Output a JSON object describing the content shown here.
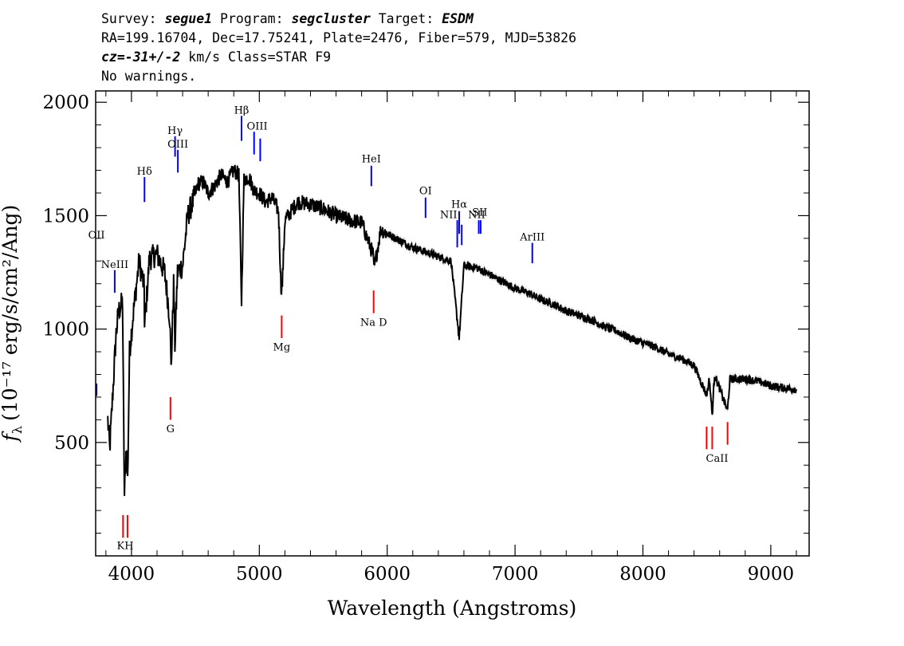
{
  "header": {
    "line1": {
      "p1": "Survey: ",
      "survey": "segue1",
      "p2": " Program: ",
      "program": "segcluster",
      "p3": " Target: ",
      "target": "ESDM"
    },
    "line2": "RA=199.16704, Dec=17.75241, Plate=2476, Fiber=579, MJD=53826",
    "line3": {
      "cz": "cz=-31+/-2",
      "rest": " km/s Class=STAR F9"
    },
    "line4": "No warnings."
  },
  "chart_data": {
    "type": "line",
    "xlabel": "Wavelength (Angstroms)",
    "ylabel_text": "f",
    "ylabel_sub": "λ",
    "ylabel_rest": "(10⁻¹⁷ erg/s/cm²/Ang)",
    "xlim": [
      3720,
      9300
    ],
    "ylim": [
      0,
      2050
    ],
    "xticks": [
      4000,
      5000,
      6000,
      7000,
      8000,
      9000
    ],
    "yticks": [
      500,
      1000,
      1500,
      2000
    ],
    "spectrum_color": "#000000",
    "error_color": "#b0b0b0",
    "spectrum_anchors": [
      [
        3815,
        600
      ],
      [
        3830,
        470
      ],
      [
        3860,
        780
      ],
      [
        3880,
        980
      ],
      [
        3900,
        1080
      ],
      [
        3930,
        1120
      ],
      [
        3945,
        260
      ],
      [
        3960,
        500
      ],
      [
        3970,
        330
      ],
      [
        3985,
        900
      ],
      [
        4020,
        1100
      ],
      [
        4060,
        1300
      ],
      [
        4100,
        1180
      ],
      [
        4102,
        1000
      ],
      [
        4140,
        1310
      ],
      [
        4200,
        1330
      ],
      [
        4260,
        1250
      ],
      [
        4300,
        1050
      ],
      [
        4310,
        820
      ],
      [
        4330,
        1200
      ],
      [
        4340,
        930
      ],
      [
        4360,
        1250
      ],
      [
        4400,
        1280
      ],
      [
        4440,
        1500
      ],
      [
        4480,
        1560
      ],
      [
        4520,
        1640
      ],
      [
        4560,
        1650
      ],
      [
        4600,
        1600
      ],
      [
        4650,
        1630
      ],
      [
        4700,
        1680
      ],
      [
        4750,
        1650
      ],
      [
        4800,
        1700
      ],
      [
        4840,
        1680
      ],
      [
        4861,
        1120
      ],
      [
        4880,
        1660
      ],
      [
        4920,
        1670
      ],
      [
        4960,
        1610
      ],
      [
        5000,
        1600
      ],
      [
        5050,
        1560
      ],
      [
        5100,
        1580
      ],
      [
        5150,
        1520
      ],
      [
        5170,
        1180
      ],
      [
        5180,
        1200
      ],
      [
        5200,
        1480
      ],
      [
        5300,
        1560
      ],
      [
        5400,
        1550
      ],
      [
        5500,
        1530
      ],
      [
        5600,
        1500
      ],
      [
        5700,
        1480
      ],
      [
        5800,
        1470
      ],
      [
        5889,
        1330
      ],
      [
        5896,
        1260
      ],
      [
        5950,
        1440
      ],
      [
        6000,
        1420
      ],
      [
        6100,
        1390
      ],
      [
        6200,
        1360
      ],
      [
        6300,
        1340
      ],
      [
        6400,
        1320
      ],
      [
        6500,
        1300
      ],
      [
        6563,
        960
      ],
      [
        6600,
        1280
      ],
      [
        6700,
        1270
      ],
      [
        6800,
        1240
      ],
      [
        6900,
        1210
      ],
      [
        7000,
        1180
      ],
      [
        7100,
        1160
      ],
      [
        7200,
        1130
      ],
      [
        7300,
        1110
      ],
      [
        7400,
        1080
      ],
      [
        7500,
        1060
      ],
      [
        7600,
        1040
      ],
      [
        7700,
        1010
      ],
      [
        7800,
        990
      ],
      [
        7900,
        960
      ],
      [
        8000,
        940
      ],
      [
        8100,
        920
      ],
      [
        8200,
        890
      ],
      [
        8300,
        870
      ],
      [
        8400,
        840
      ],
      [
        8498,
        710
      ],
      [
        8520,
        780
      ],
      [
        8542,
        620
      ],
      [
        8560,
        800
      ],
      [
        8662,
        640
      ],
      [
        8680,
        780
      ],
      [
        8800,
        780
      ],
      [
        8900,
        770
      ],
      [
        9000,
        750
      ],
      [
        9100,
        740
      ],
      [
        9200,
        735
      ]
    ],
    "emission_lines": [
      {
        "name": "OII",
        "wave": 3727,
        "y1": 705,
        "y2": 760
      },
      {
        "name": "NeIII",
        "wave": 3869,
        "y1": 1160,
        "y2": 1260
      },
      {
        "name": "Hδ",
        "wave": 4102,
        "y1": 1560,
        "y2": 1670
      },
      {
        "name": "Hγ",
        "wave": 4341,
        "y1": 1760,
        "y2": 1850
      },
      {
        "name": "OIII",
        "wave": 4363,
        "y1": 1690,
        "y2": 1790
      },
      {
        "name": "Hβ",
        "wave": 4861,
        "y1": 1830,
        "y2": 1940
      },
      {
        "name": "OIII",
        "wave": 4959,
        "y1": 1770,
        "y2": 1870
      },
      {
        "name": "OIII",
        "wave": 5007,
        "y1": 1740,
        "y2": 1840
      },
      {
        "name": "HeI",
        "wave": 5876,
        "y1": 1630,
        "y2": 1720
      },
      {
        "name": "OI",
        "wave": 6300,
        "y1": 1490,
        "y2": 1580
      },
      {
        "name": "NII",
        "wave": 6548,
        "y1": 1360,
        "y2": 1480
      },
      {
        "name": "Hα",
        "wave": 6563,
        "y1": 1420,
        "y2": 1520
      },
      {
        "name": "NII",
        "wave": 6583,
        "y1": 1370,
        "y2": 1460
      },
      {
        "name": "SII",
        "wave": 6716,
        "y1": 1420,
        "y2": 1480
      },
      {
        "name": "SII",
        "wave": 6731,
        "y1": 1420,
        "y2": 1480
      },
      {
        "name": "ArIII",
        "wave": 7135,
        "y1": 1290,
        "y2": 1380
      }
    ],
    "emission_labels": [
      {
        "text": "OII",
        "wave": 3727,
        "y": 1400
      },
      {
        "text": "NeIII",
        "wave": 3869,
        "y": 1270
      },
      {
        "text": "Hδ",
        "wave": 4102,
        "y": 1680
      },
      {
        "text": "Hγ",
        "wave": 4341,
        "y": 1860
      },
      {
        "text": "OIII",
        "wave": 4363,
        "y": 1800
      },
      {
        "text": "Hβ",
        "wave": 4861,
        "y": 1950
      },
      {
        "text": "OIII",
        "wave": 4983,
        "y": 1880
      },
      {
        "text": "HeI",
        "wave": 5876,
        "y": 1735
      },
      {
        "text": "OI",
        "wave": 6300,
        "y": 1595
      },
      {
        "text": "NII",
        "wave": 6480,
        "y": 1490
      },
      {
        "text": "Hα",
        "wave": 6563,
        "y": 1535
      },
      {
        "text": "NII",
        "wave": 6700,
        "y": 1490
      },
      {
        "text": "SII",
        "wave": 6724,
        "y": 1500
      },
      {
        "text": "ArIII",
        "wave": 7135,
        "y": 1390
      }
    ],
    "absorption_lines": [
      {
        "name": "K",
        "wave": 3934,
        "y1": 80,
        "y2": 180
      },
      {
        "name": "H",
        "wave": 3969,
        "y1": 80,
        "y2": 180
      },
      {
        "name": "G",
        "wave": 4305,
        "y1": 600,
        "y2": 700
      },
      {
        "name": "Mg",
        "wave": 5175,
        "y1": 960,
        "y2": 1060
      },
      {
        "name": "Na D",
        "wave": 5894,
        "y1": 1070,
        "y2": 1170
      },
      {
        "name": "CaII",
        "wave": 8498,
        "y1": 470,
        "y2": 570
      },
      {
        "name": "CaII",
        "wave": 8542,
        "y1": 470,
        "y2": 570
      },
      {
        "name": "CaII",
        "wave": 8662,
        "y1": 490,
        "y2": 590
      }
    ],
    "absorption_labels": [
      {
        "text": "KH",
        "wave": 3951,
        "y": 30
      },
      {
        "text": "G",
        "wave": 4305,
        "y": 545
      },
      {
        "text": "Mg",
        "wave": 5175,
        "y": 905
      },
      {
        "text": "Na D",
        "wave": 5894,
        "y": 1015
      },
      {
        "text": "CaII",
        "wave": 8580,
        "y": 415
      }
    ],
    "emission_color": "#0000ff",
    "absorption_color": "#ff0000"
  }
}
